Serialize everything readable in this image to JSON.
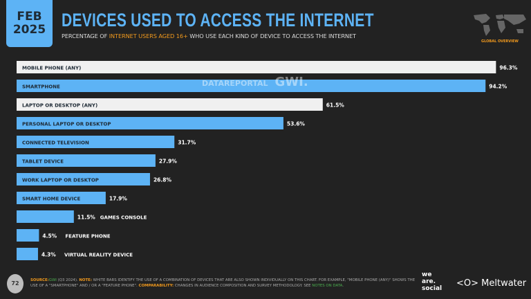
{
  "header": {
    "month": "FEB",
    "year": "2025",
    "title": "DEVICES USED TO ACCESS THE INTERNET",
    "subtitle_pre": "PERCENTAGE OF ",
    "subtitle_highlight": "INTERNET USERS AGED 16+",
    "subtitle_post": " WHO USE EACH KIND OF DEVICE TO ACCESS THE INTERNET",
    "region": "GLOBAL OVERVIEW"
  },
  "watermark": {
    "datareportal": "DATAREPORTAL",
    "gwi": "GWI."
  },
  "chart_data": {
    "type": "bar",
    "orientation": "horizontal",
    "xlim": [
      0,
      100
    ],
    "unit": "%",
    "categories": [
      "MOBILE PHONE (ANY)",
      "SMARTPHONE",
      "LAPTOP OR DESKTOP (ANY)",
      "PERSONAL LAPTOP OR DESKTOP",
      "CONNECTED TELEVISION",
      "TABLET DEVICE",
      "WORK LAPTOP OR DESKTOP",
      "SMART HOME DEVICE",
      "GAMES CONSOLE",
      "FEATURE PHONE",
      "VIRTUAL REALITY DEVICE"
    ],
    "values": [
      96.3,
      94.2,
      61.5,
      53.6,
      31.7,
      27.9,
      26.8,
      17.9,
      11.5,
      4.5,
      4.3
    ],
    "combined": [
      true,
      false,
      true,
      false,
      false,
      false,
      false,
      false,
      false,
      false,
      false
    ],
    "colors": {
      "combined": "#f0f0f0",
      "individual": "#5db3f5"
    }
  },
  "footer": {
    "page": "72",
    "source_label": "SOURCE:",
    "source_brand": "GWI",
    "source_text": " (Q3 2024). ",
    "note_label": "NOTE:",
    "note_text": " WHITE BARS IDENTIFY THE USE OF A COMBINATION OF DEVICES THAT ARE ALSO SHOWN INDIVIDUALLY ON THIS CHART. FOR EXAMPLE, \"MOBILE PHONE (ANY)\" SHOWS THE USE OF A \"SMARTPHONE\" AND / OR A \"FEATURE PHONE\". ",
    "comp_label": "COMPARABILITY:",
    "comp_text": " CHANGES IN AUDIENCE COMPOSITION AND SURVEY METHODOLOGY. SEE ",
    "notes_link": "NOTES ON DATA",
    "end": ".",
    "logo1": "we are. social",
    "logo2": "Meltwater"
  }
}
